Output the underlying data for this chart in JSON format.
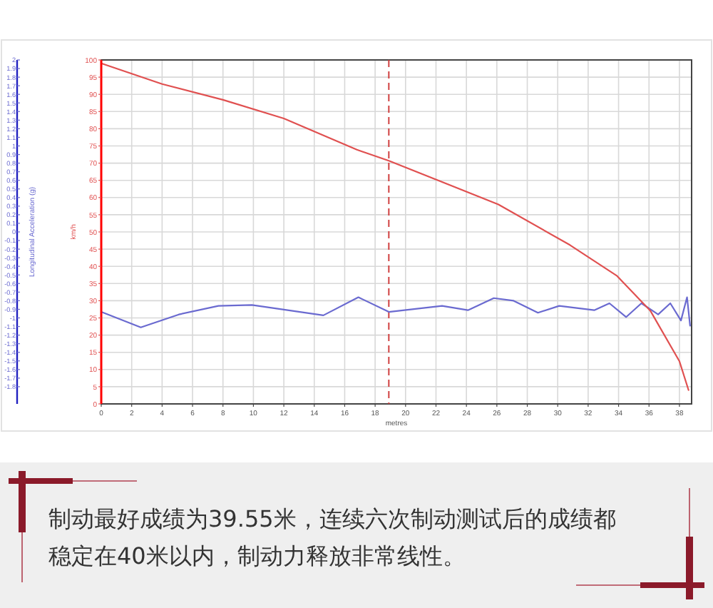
{
  "chart_data": {
    "type": "line",
    "xlabel": "metres",
    "ylabel": "Longitudinal Acceleration (g)",
    "y2label": "km/h",
    "xlim": [
      0,
      38.8
    ],
    "xticks": [
      0,
      2,
      4,
      6,
      8,
      10,
      12,
      14,
      16,
      18,
      20,
      22,
      24,
      26,
      28,
      30,
      32,
      34,
      36,
      38
    ],
    "ylim": [
      -2,
      2
    ],
    "yticks": [
      -1.8,
      -1.7,
      -1.6,
      -1.5,
      -1.4,
      -1.3,
      -1.2,
      -1.1,
      -1,
      -0.9,
      -0.8,
      -0.7,
      -0.6,
      -0.5,
      -0.4,
      -0.3,
      -0.2,
      -0.1,
      0,
      0.1,
      0.2,
      0.3,
      0.4,
      0.5,
      0.6,
      0.7,
      0.8,
      0.9,
      1,
      1.1,
      1.2,
      1.3,
      1.4,
      1.5,
      1.6,
      1.7,
      1.8,
      1.9,
      2
    ],
    "y2lim": [
      0,
      100
    ],
    "y2ticks": [
      0,
      5,
      10,
      15,
      20,
      25,
      30,
      35,
      40,
      45,
      50,
      55,
      60,
      65,
      70,
      75,
      80,
      85,
      90,
      95,
      100
    ],
    "grid": true,
    "series": [
      {
        "color": "#6a6ad0",
        "axis": "y",
        "x": [
          0,
          2.6,
          5.1,
          7.7,
          9.9,
          14.6,
          16.9,
          18.9,
          22.4,
          24.1,
          25.8,
          27.1,
          28.7,
          30.1,
          32.4,
          33.4,
          34.5,
          35.5,
          36.6,
          37.4,
          38.1,
          38.5,
          38.7
        ],
        "values": [
          -0.93,
          -1.11,
          -0.96,
          -0.86,
          -0.85,
          -0.97,
          -0.76,
          -0.93,
          -0.86,
          -0.91,
          -0.77,
          -0.8,
          -0.94,
          -0.86,
          -0.91,
          -0.83,
          -0.99,
          -0.83,
          -0.96,
          -0.83,
          -1.03,
          -0.76,
          -1.09
        ]
      },
      {
        "color": "#e05050",
        "axis": "y2",
        "x": [
          0,
          4,
          8,
          12,
          16.8,
          18.9,
          26.1,
          30.8,
          33.9,
          36.1,
          38,
          38.6
        ],
        "values": [
          99,
          93,
          88.4,
          83,
          73.9,
          70.7,
          58,
          46.2,
          37.2,
          27,
          12.4,
          4
        ]
      }
    ],
    "ref_lines": [
      {
        "axis": "x",
        "value": 18.9,
        "color": "#d04040",
        "line_style": "dashed"
      }
    ],
    "annotations": [
      "制动最好成绩为39.55米，连续六次制动测试后的成绩都稳定在40米以内，制动力释放非常线性。"
    ]
  }
}
